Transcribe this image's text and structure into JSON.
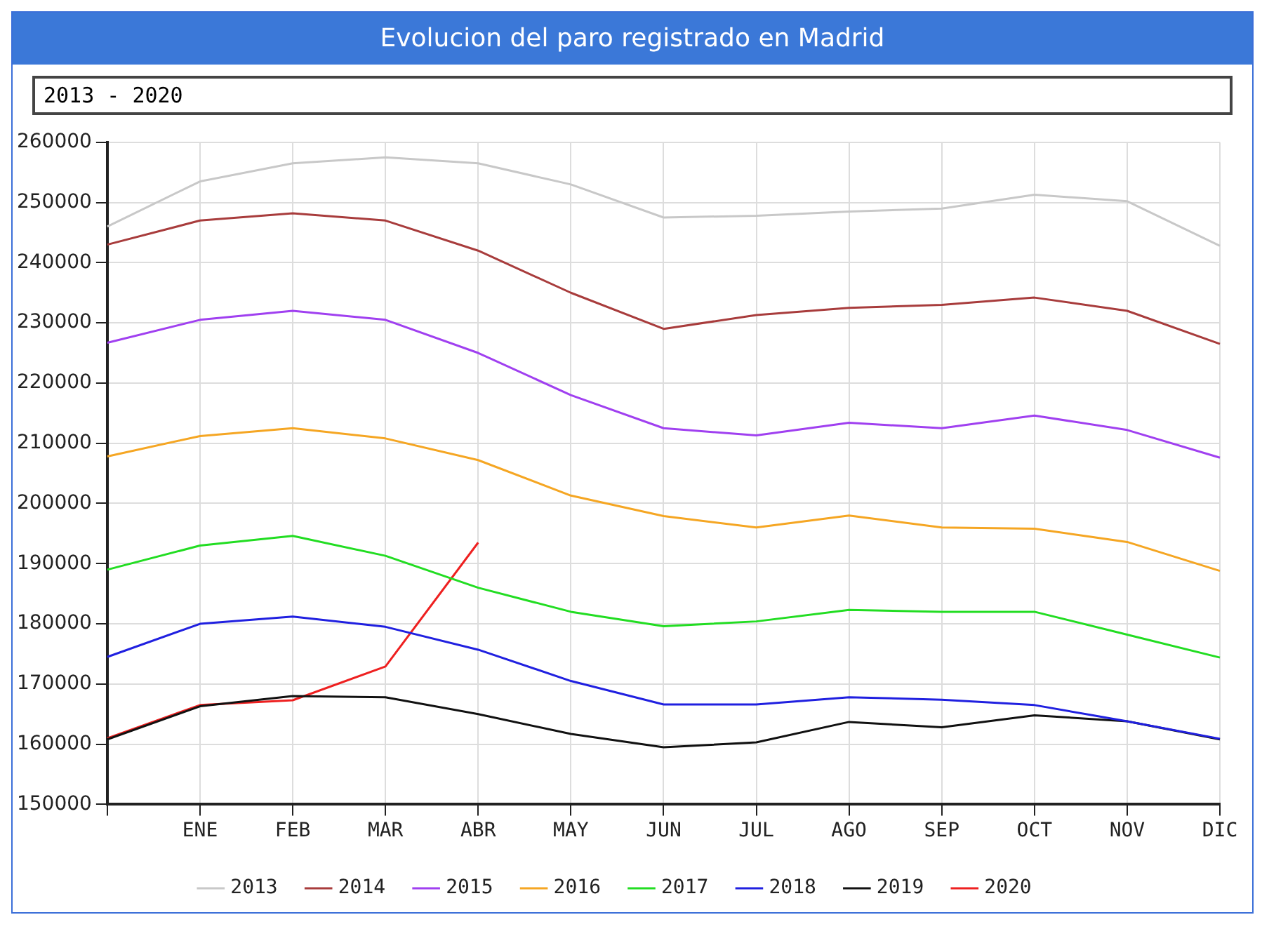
{
  "chart_data": {
    "type": "line",
    "title": "Evolucion del paro registrado en Madrid",
    "subtitle": "2013 - 2020",
    "categories": [
      null,
      "ENE",
      "FEB",
      "MAR",
      "ABR",
      "MAY",
      "JUN",
      "JUL",
      "AGO",
      "SEP",
      "OCT",
      "NOV",
      "DIC"
    ],
    "series": [
      {
        "name": "2013",
        "color": "#c8c8c8",
        "values": [
          246000,
          253500,
          256500,
          257500,
          256500,
          253000,
          247500,
          247800,
          248500,
          249000,
          251300,
          250200,
          242800
        ]
      },
      {
        "name": "2014",
        "color": "#a83c3c",
        "values": [
          243000,
          247000,
          248200,
          247000,
          242000,
          235000,
          229000,
          231300,
          232500,
          233000,
          234200,
          232000,
          226500
        ]
      },
      {
        "name": "2015",
        "color": "#a040f0",
        "values": [
          226700,
          230500,
          232000,
          230500,
          225000,
          218000,
          212500,
          211300,
          213400,
          212500,
          214600,
          212200,
          207600
        ]
      },
      {
        "name": "2016",
        "color": "#f5a623",
        "values": [
          207800,
          211200,
          212500,
          210800,
          207200,
          201300,
          197900,
          196000,
          198000,
          196000,
          195800,
          193600,
          188800
        ]
      },
      {
        "name": "2017",
        "color": "#22dd22",
        "values": [
          189000,
          193000,
          194600,
          191300,
          186000,
          182000,
          179600,
          180400,
          182300,
          182000,
          182000,
          178200,
          174400
        ]
      },
      {
        "name": "2018",
        "color": "#2020e0",
        "values": [
          174500,
          180000,
          181200,
          179500,
          175700,
          170500,
          166600,
          166600,
          167800,
          167400,
          166500,
          163800,
          160900
        ]
      },
      {
        "name": "2019",
        "color": "#111111",
        "values": [
          160800,
          166300,
          168000,
          167800,
          165000,
          161700,
          159500,
          160300,
          163700,
          162800,
          164800,
          163800,
          160800
        ]
      },
      {
        "name": "2020",
        "color": "#ee2020",
        "values": [
          161000,
          166500,
          167300,
          172900,
          193500,
          null,
          null,
          null,
          null,
          null,
          null,
          null,
          null
        ]
      }
    ],
    "ylim": [
      150000,
      260000
    ],
    "yticks": [
      150000,
      160000,
      170000,
      180000,
      190000,
      200000,
      210000,
      220000,
      230000,
      240000,
      250000,
      260000
    ],
    "grid": true,
    "legend": "bottom",
    "marker": "none",
    "line_style": "solid"
  }
}
